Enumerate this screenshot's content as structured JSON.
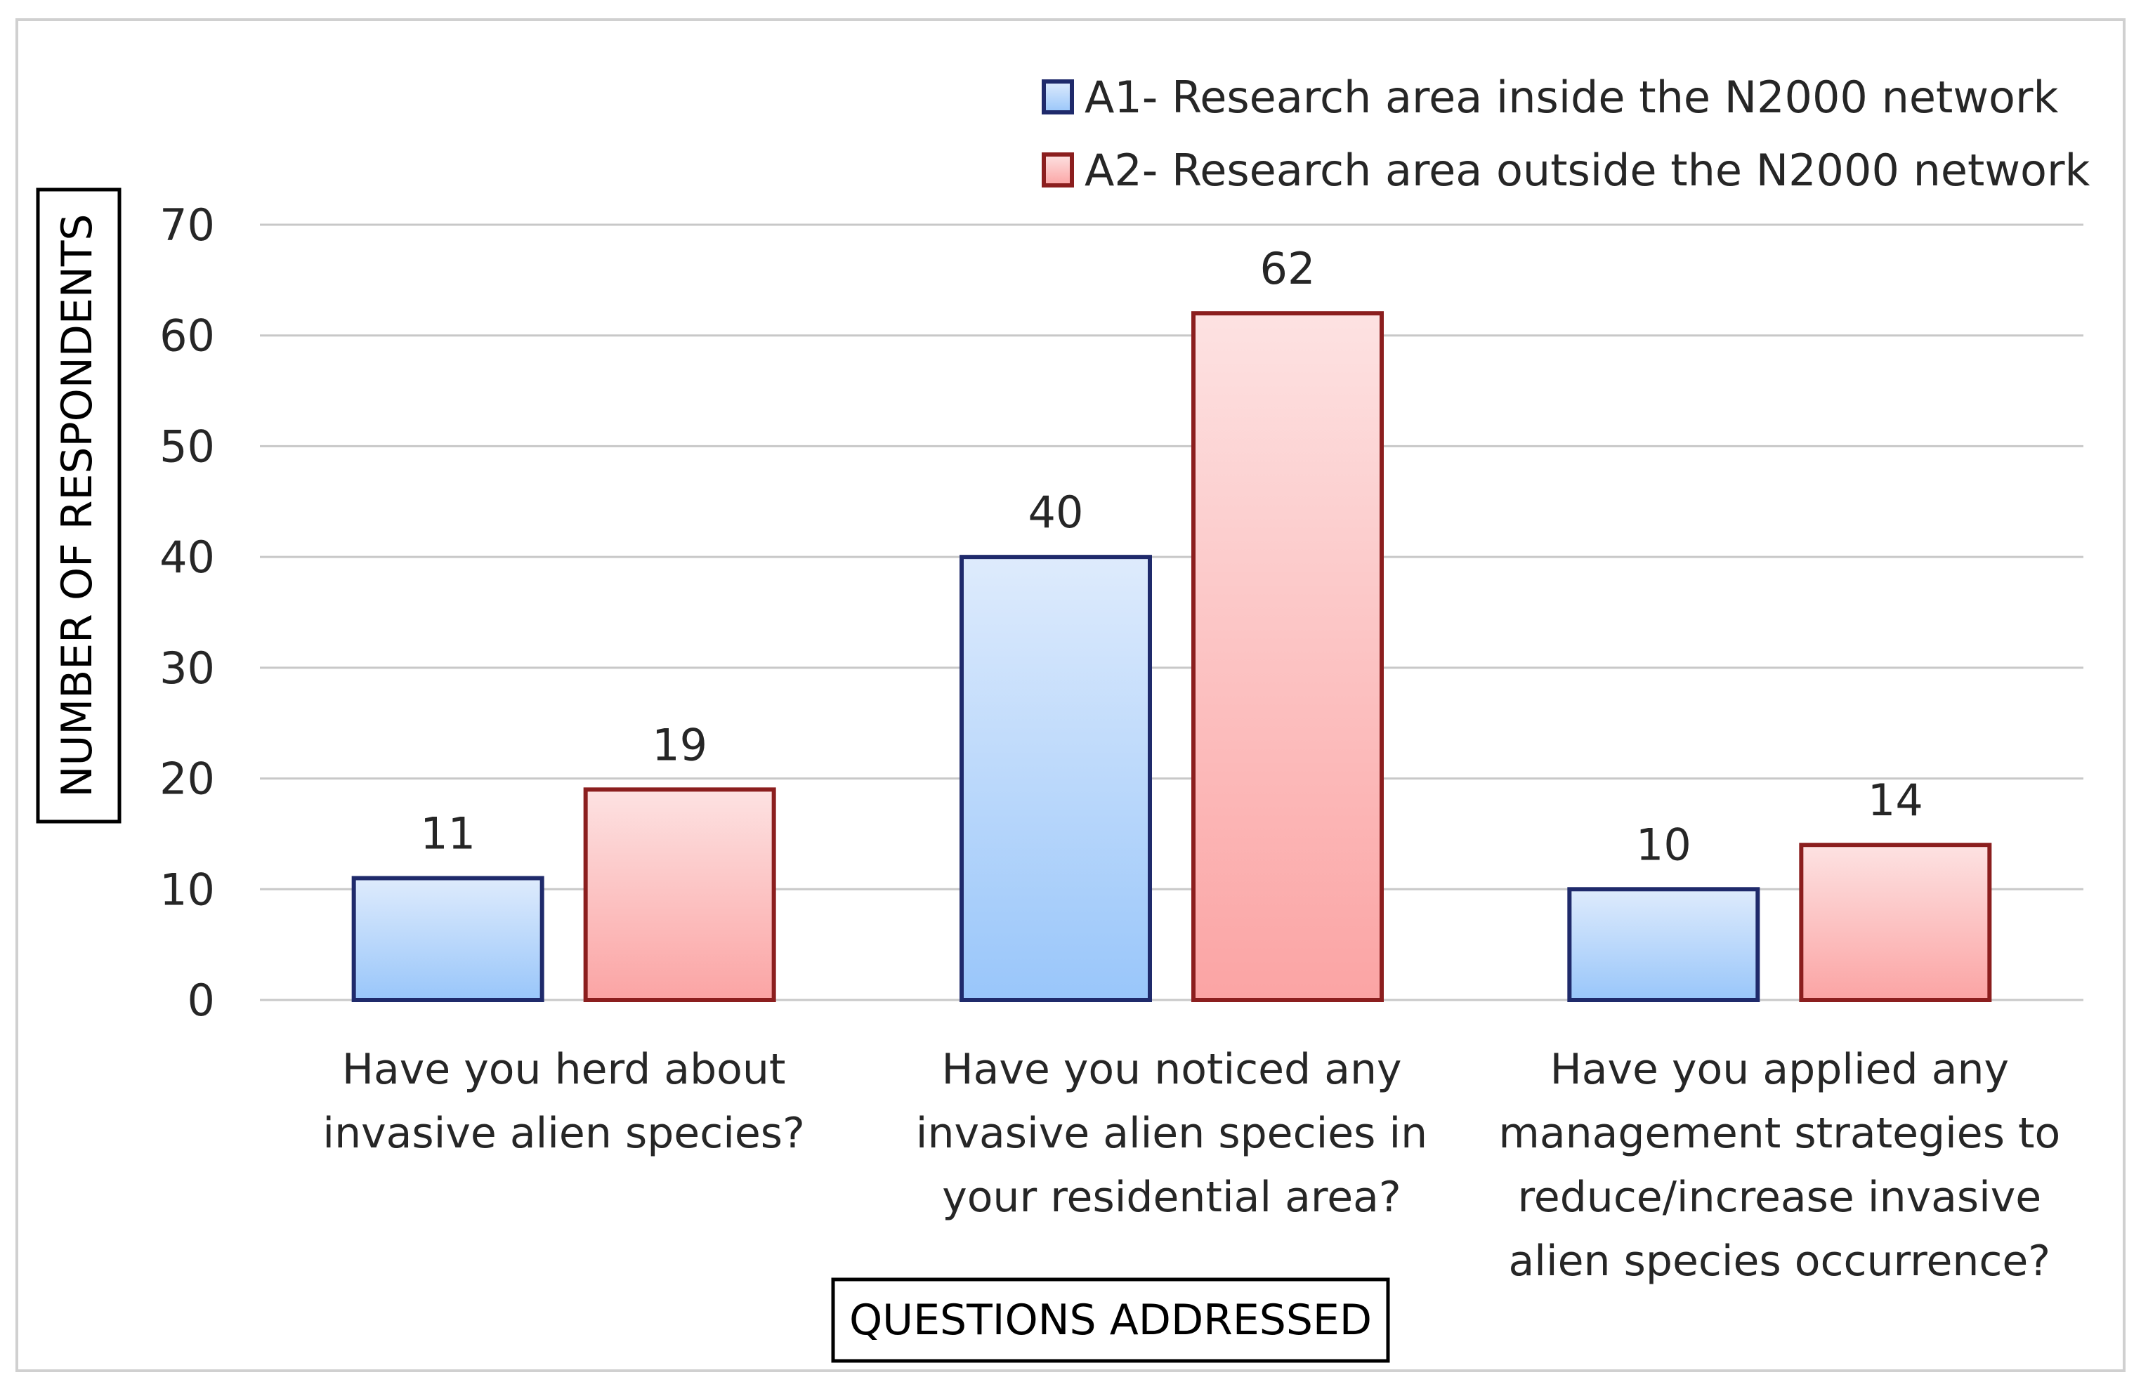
{
  "chart_data": {
    "type": "bar",
    "categories": [
      [
        "Have you herd about",
        "invasive alien species?"
      ],
      [
        "Have you noticed any",
        "invasive alien species in",
        "your residential area?"
      ],
      [
        "Have you applied any",
        "management strategies to",
        "reduce/increase invasive",
        "alien species occurrence?"
      ]
    ],
    "series": [
      {
        "name": "A1- Research area inside the N2000 network",
        "values": [
          11,
          40,
          10
        ],
        "color_top": "#deebfc",
        "color_bottom": "#99c6fa",
        "stroke": "#1f2a6b"
      },
      {
        "name": "A2- Research area outside the N2000 network",
        "values": [
          19,
          62,
          14
        ],
        "color_top": "#fde2e2",
        "color_bottom": "#fba4a4",
        "stroke": "#8b1e1e"
      }
    ],
    "xlabel": "QUESTIONS ADDRESSED",
    "ylabel": "NUMBER OF RESPONDENTS",
    "ylim": [
      0,
      70
    ],
    "yticks": [
      0,
      10,
      20,
      30,
      40,
      50,
      60,
      70
    ],
    "grid": true,
    "legend_position": "top-right",
    "data_labels": true
  }
}
